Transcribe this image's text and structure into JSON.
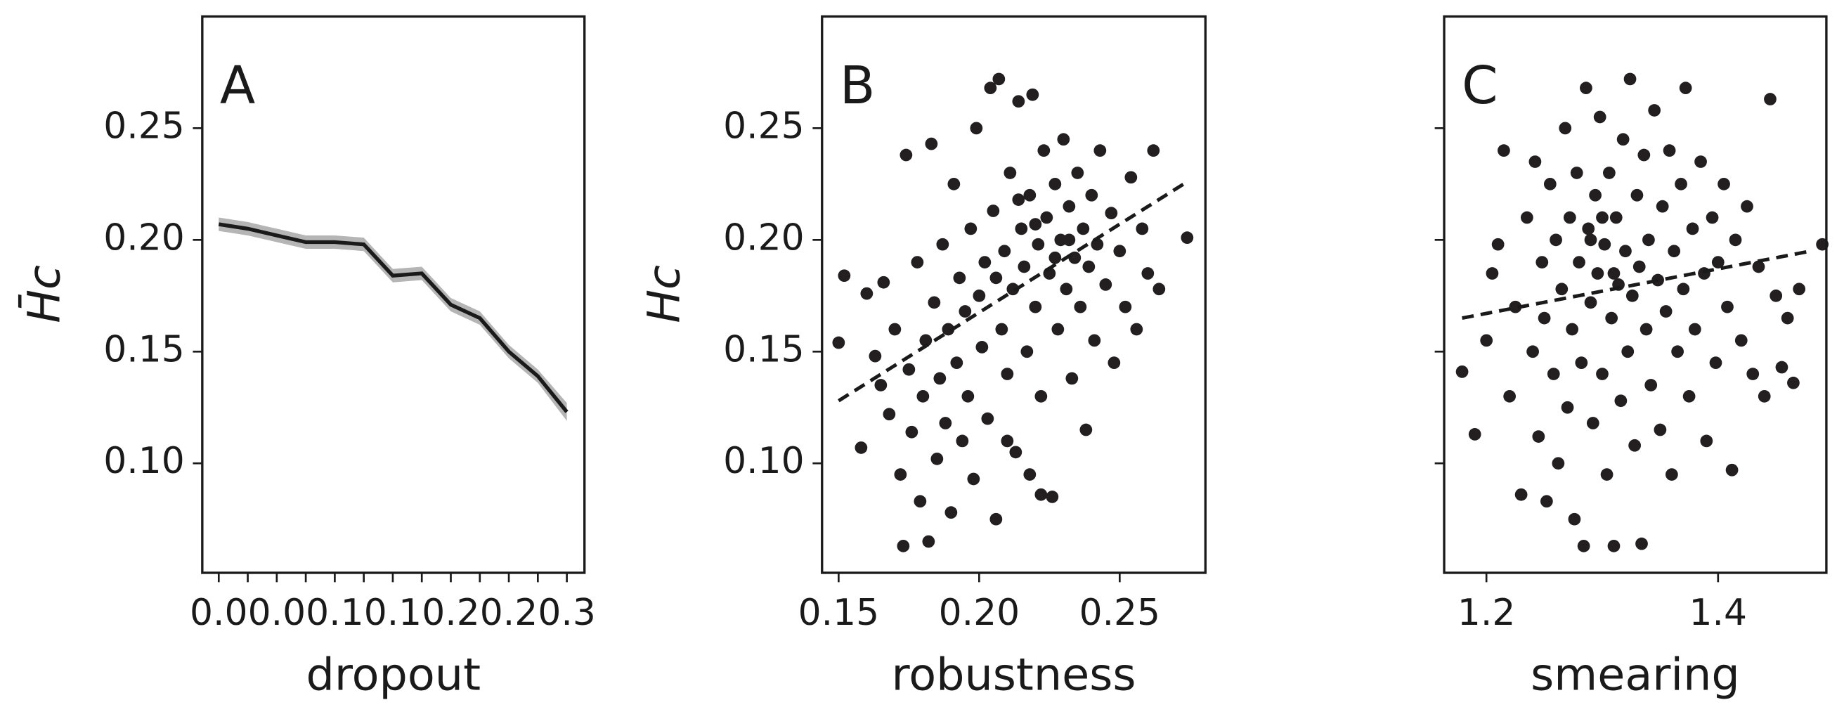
{
  "chart_data": [
    {
      "type": "line",
      "annotation": "A",
      "xlabel": "dropout",
      "ylabel": "H̄c",
      "x": [
        0,
        0.025,
        0.05,
        0.075,
        0.1,
        0.125,
        0.15,
        0.175,
        0.2,
        0.225,
        0.25,
        0.275,
        0.3
      ],
      "values": [
        0.207,
        0.205,
        0.202,
        0.199,
        0.199,
        0.198,
        0.184,
        0.185,
        0.171,
        0.165,
        0.15,
        0.139,
        0.123
      ],
      "errors": [
        0.003,
        0.003,
        0.003,
        0.003,
        0.003,
        0.003,
        0.003,
        0.003,
        0.003,
        0.003,
        0.003,
        0.003,
        0.004
      ],
      "color": "#1a1a1a",
      "band_color": "#b5b5b5",
      "xlim": [
        -0.0142,
        0.3152
      ],
      "ylim": [
        0.051,
        0.3
      ],
      "xticks": [
        {
          "value": 0,
          "label": "0.0"
        },
        {
          "value": 0.05,
          "label": "0.0"
        },
        {
          "value": 0.1,
          "label": "0.1"
        },
        {
          "value": 0.15,
          "label": "0.1"
        },
        {
          "value": 0.2,
          "label": "0.2"
        },
        {
          "value": 0.25,
          "label": "0.2"
        },
        {
          "value": 0.3,
          "label": "0.3"
        }
      ],
      "xminorticks": [
        0.025,
        0.075,
        0.125,
        0.175,
        0.225,
        0.275
      ],
      "yticks": [
        0.25,
        {
          "value": 0.2,
          "label": "0.20"
        },
        0.15,
        {
          "value": 0.1,
          "label": "0.10"
        }
      ],
      "ytick_labels": true
    },
    {
      "type": "scatter",
      "annotation": "B",
      "xlabel": "robustness",
      "ylabel": "Hc",
      "color": "#231f20",
      "x": [
        0.15,
        0.152,
        0.158,
        0.16,
        0.163,
        0.165,
        0.166,
        0.168,
        0.17,
        0.172,
        0.173,
        0.174,
        0.175,
        0.176,
        0.178,
        0.179,
        0.18,
        0.181,
        0.182,
        0.183,
        0.184,
        0.185,
        0.186,
        0.187,
        0.188,
        0.189,
        0.19,
        0.191,
        0.192,
        0.193,
        0.194,
        0.195,
        0.196,
        0.197,
        0.198,
        0.199,
        0.2,
        0.201,
        0.202,
        0.203,
        0.204,
        0.205,
        0.206,
        0.207,
        0.208,
        0.209,
        0.21,
        0.211,
        0.212,
        0.213,
        0.214,
        0.215,
        0.216,
        0.217,
        0.218,
        0.219,
        0.22,
        0.221,
        0.222,
        0.223,
        0.224,
        0.225,
        0.226,
        0.227,
        0.228,
        0.229,
        0.23,
        0.231,
        0.232,
        0.233,
        0.234,
        0.235,
        0.236,
        0.237,
        0.238,
        0.239,
        0.24,
        0.241,
        0.242,
        0.243,
        0.245,
        0.247,
        0.248,
        0.25,
        0.252,
        0.254,
        0.256,
        0.258,
        0.26,
        0.262,
        0.264,
        0.274,
        0.222,
        0.218,
        0.21,
        0.206,
        0.227,
        0.232,
        0.214,
        0.22
      ],
      "values": [
        0.154,
        0.184,
        0.107,
        0.176,
        0.148,
        0.135,
        0.181,
        0.122,
        0.16,
        0.095,
        0.063,
        0.238,
        0.142,
        0.114,
        0.19,
        0.083,
        0.13,
        0.155,
        0.065,
        0.243,
        0.172,
        0.102,
        0.138,
        0.198,
        0.118,
        0.16,
        0.078,
        0.225,
        0.145,
        0.183,
        0.11,
        0.168,
        0.13,
        0.205,
        0.093,
        0.25,
        0.175,
        0.152,
        0.19,
        0.12,
        0.268,
        0.213,
        0.075,
        0.272,
        0.16,
        0.195,
        0.14,
        0.23,
        0.178,
        0.105,
        0.262,
        0.205,
        0.188,
        0.15,
        0.22,
        0.265,
        0.17,
        0.198,
        0.13,
        0.24,
        0.21,
        0.185,
        0.085,
        0.225,
        0.16,
        0.2,
        0.245,
        0.178,
        0.215,
        0.138,
        0.192,
        0.23,
        0.17,
        0.205,
        0.115,
        0.188,
        0.22,
        0.155,
        0.198,
        0.24,
        0.18,
        0.212,
        0.145,
        0.195,
        0.17,
        0.228,
        0.16,
        0.205,
        0.185,
        0.24,
        0.178,
        0.201,
        0.086,
        0.095,
        0.11,
        0.183,
        0.192,
        0.2,
        0.218,
        0.207
      ],
      "fit_x": [
        0.15,
        0.274
      ],
      "fit_y": [
        0.128,
        0.226
      ],
      "xlim": [
        0.1441,
        0.2805
      ],
      "ylim": [
        0.051,
        0.3
      ],
      "xticks": [
        0.15,
        {
          "value": 0.2,
          "label": "0.20"
        },
        0.25
      ],
      "yticks": [
        0.25,
        {
          "value": 0.2,
          "label": "0.20"
        },
        0.15,
        {
          "value": 0.1,
          "label": "0.10"
        }
      ],
      "ytick_labels": true
    },
    {
      "type": "scatter",
      "annotation": "C",
      "xlabel": "smearing",
      "color": "#231f20",
      "x": [
        1.179,
        1.19,
        1.2,
        1.205,
        1.21,
        1.215,
        1.22,
        1.225,
        1.23,
        1.235,
        1.24,
        1.242,
        1.245,
        1.248,
        1.25,
        1.252,
        1.255,
        1.258,
        1.26,
        1.262,
        1.265,
        1.268,
        1.27,
        1.272,
        1.274,
        1.276,
        1.278,
        1.28,
        1.282,
        1.284,
        1.286,
        1.288,
        1.29,
        1.292,
        1.294,
        1.296,
        1.298,
        1.3,
        1.302,
        1.304,
        1.306,
        1.308,
        1.31,
        1.312,
        1.314,
        1.316,
        1.318,
        1.32,
        1.322,
        1.324,
        1.326,
        1.328,
        1.33,
        1.332,
        1.334,
        1.336,
        1.338,
        1.34,
        1.342,
        1.345,
        1.348,
        1.35,
        1.352,
        1.355,
        1.358,
        1.36,
        1.362,
        1.365,
        1.368,
        1.37,
        1.372,
        1.375,
        1.378,
        1.38,
        1.385,
        1.388,
        1.39,
        1.395,
        1.398,
        1.4,
        1.405,
        1.408,
        1.412,
        1.415,
        1.42,
        1.425,
        1.43,
        1.435,
        1.44,
        1.445,
        1.45,
        1.455,
        1.46,
        1.465,
        1.47,
        1.49,
        1.3,
        1.29,
        1.31
      ],
      "values": [
        0.141,
        0.113,
        0.155,
        0.185,
        0.198,
        0.24,
        0.13,
        0.17,
        0.086,
        0.21,
        0.15,
        0.235,
        0.112,
        0.19,
        0.165,
        0.083,
        0.225,
        0.14,
        0.2,
        0.1,
        0.178,
        0.25,
        0.125,
        0.21,
        0.16,
        0.075,
        0.23,
        0.19,
        0.145,
        0.063,
        0.268,
        0.205,
        0.172,
        0.118,
        0.22,
        0.185,
        0.255,
        0.14,
        0.198,
        0.095,
        0.23,
        0.165,
        0.063,
        0.21,
        0.18,
        0.128,
        0.245,
        0.195,
        0.15,
        0.272,
        0.175,
        0.108,
        0.22,
        0.188,
        0.064,
        0.238,
        0.16,
        0.2,
        0.135,
        0.258,
        0.182,
        0.115,
        0.215,
        0.168,
        0.24,
        0.095,
        0.195,
        0.15,
        0.225,
        0.178,
        0.268,
        0.13,
        0.205,
        0.16,
        0.235,
        0.185,
        0.11,
        0.21,
        0.145,
        0.19,
        0.225,
        0.17,
        0.097,
        0.2,
        0.155,
        0.215,
        0.14,
        0.188,
        0.13,
        0.263,
        0.175,
        0.143,
        0.165,
        0.136,
        0.178,
        0.198,
        0.21,
        0.2,
        0.185
      ],
      "fit_x": [
        1.179,
        1.48
      ],
      "fit_y": [
        0.165,
        0.195
      ],
      "xlim": [
        1.1635,
        1.4935
      ],
      "ylim": [
        0.051,
        0.3
      ],
      "xticks": [
        1.2,
        1.4
      ],
      "yticks": [
        0.25,
        0.2,
        0.15,
        0.1
      ],
      "ytick_labels": false
    }
  ]
}
